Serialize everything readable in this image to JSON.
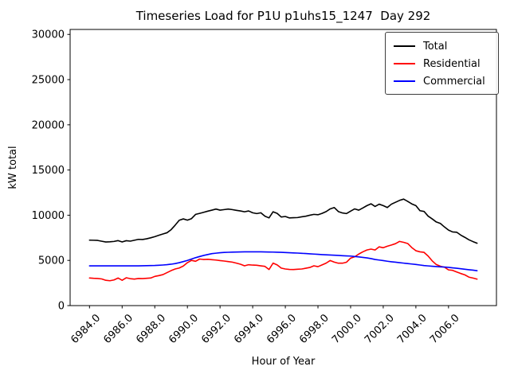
{
  "chart": {
    "title": "Timeseries Load for P1U p1uhs15_1247  Day 292",
    "xlabel": "Hour of Year",
    "ylabel": "kW total"
  },
  "chart_data": {
    "type": "line",
    "title": "Timeseries Load for P1U p1uhs15_1247  Day 292",
    "xlabel": "Hour of Year",
    "ylabel": "kW total",
    "grid": false,
    "legend_position": "upper right",
    "xlim": [
      6982.8125,
      7008.9375
    ],
    "ylim": [
      0,
      30550
    ],
    "xticks": [
      6984,
      6986,
      6988,
      6990,
      6992,
      6994,
      6996,
      6998,
      7000,
      7002,
      7004,
      7006
    ],
    "xtick_labels": [
      "6984.0",
      "6986.0",
      "6988.0",
      "6990.0",
      "6992.0",
      "6994.0",
      "6996.0",
      "6998.0",
      "7000.0",
      "7002.0",
      "7004.0",
      "7006.0"
    ],
    "yticks": [
      0,
      5000,
      10000,
      15000,
      20000,
      25000,
      30000
    ],
    "ytick_labels": [
      "0",
      "5000",
      "10000",
      "15000",
      "20000",
      "25000",
      "30000"
    ],
    "x": [
      6984.0,
      6984.25,
      6984.5,
      6984.75,
      6985.0,
      6985.25,
      6985.5,
      6985.75,
      6986.0,
      6986.25,
      6986.5,
      6986.75,
      6987.0,
      6987.25,
      6987.5,
      6987.75,
      6988.0,
      6988.25,
      6988.5,
      6988.75,
      6989.0,
      6989.25,
      6989.5,
      6989.75,
      6990.0,
      6990.25,
      6990.5,
      6990.75,
      6991.0,
      6991.25,
      6991.5,
      6991.75,
      6992.0,
      6992.25,
      6992.5,
      6992.75,
      6993.0,
      6993.25,
      6993.5,
      6993.75,
      6994.0,
      6994.25,
      6994.5,
      6994.75,
      6995.0,
      6995.25,
      6995.5,
      6995.75,
      6996.0,
      6996.25,
      6996.5,
      6996.75,
      6997.0,
      6997.25,
      6997.5,
      6997.75,
      6998.0,
      6998.25,
      6998.5,
      6998.75,
      6999.0,
      6999.25,
      6999.5,
      6999.75,
      7000.0,
      7000.25,
      7000.5,
      7000.75,
      7001.0,
      7001.25,
      7001.5,
      7001.75,
      7002.0,
      7002.25,
      7002.5,
      7002.75,
      7003.0,
      7003.25,
      7003.5,
      7003.75,
      7004.0,
      7004.25,
      7004.5,
      7004.75,
      7005.0,
      7005.25,
      7005.5,
      7005.75,
      7006.0,
      7006.25,
      7006.5,
      7006.75,
      7007.0,
      7007.25,
      7007.5,
      7007.75
    ],
    "series": [
      {
        "name": "Total",
        "color": "#000000",
        "values": [
          7240,
          7230,
          7210,
          7120,
          7040,
          7060,
          7100,
          7190,
          7040,
          7180,
          7130,
          7230,
          7330,
          7310,
          7390,
          7500,
          7630,
          7780,
          7920,
          8060,
          8400,
          8900,
          9440,
          9590,
          9450,
          9620,
          10090,
          10200,
          10320,
          10450,
          10560,
          10680,
          10560,
          10620,
          10680,
          10620,
          10540,
          10470,
          10380,
          10470,
          10270,
          10180,
          10270,
          9890,
          9700,
          10380,
          10200,
          9800,
          9860,
          9700,
          9720,
          9740,
          9820,
          9890,
          10000,
          10090,
          10050,
          10200,
          10400,
          10700,
          10850,
          10400,
          10250,
          10180,
          10450,
          10700,
          10560,
          10800,
          11060,
          11260,
          10970,
          11220,
          11060,
          10850,
          11220,
          11430,
          11640,
          11780,
          11530,
          11250,
          11060,
          10500,
          10420,
          9900,
          9590,
          9250,
          9090,
          8700,
          8350,
          8150,
          8120,
          7800,
          7550,
          7280,
          7080,
          6900
        ]
      },
      {
        "name": "Residential",
        "color": "#ff0000",
        "values": [
          3050,
          3020,
          3000,
          2950,
          2800,
          2750,
          2840,
          3050,
          2800,
          3080,
          2980,
          2930,
          3000,
          2990,
          3020,
          3050,
          3230,
          3320,
          3430,
          3650,
          3870,
          4050,
          4160,
          4380,
          4750,
          5000,
          4900,
          5150,
          5100,
          5120,
          5080,
          5040,
          4980,
          4930,
          4870,
          4810,
          4700,
          4580,
          4400,
          4520,
          4480,
          4460,
          4400,
          4340,
          3990,
          4700,
          4500,
          4150,
          4050,
          4000,
          3990,
          4020,
          4050,
          4130,
          4220,
          4400,
          4310,
          4500,
          4700,
          4990,
          4810,
          4690,
          4690,
          4800,
          5250,
          5400,
          5700,
          5950,
          6150,
          6250,
          6150,
          6500,
          6400,
          6570,
          6700,
          6850,
          7100,
          7000,
          6870,
          6420,
          6070,
          5950,
          5890,
          5480,
          4950,
          4540,
          4360,
          4250,
          3950,
          3900,
          3720,
          3550,
          3400,
          3150,
          3050,
          2930
        ]
      },
      {
        "name": "Commercial",
        "color": "#0000ff",
        "values": [
          4400,
          4400,
          4400,
          4400,
          4400,
          4400,
          4400,
          4400,
          4400,
          4400,
          4400,
          4400,
          4400,
          4410,
          4420,
          4430,
          4440,
          4460,
          4490,
          4530,
          4580,
          4650,
          4750,
          4870,
          5000,
          5150,
          5300,
          5430,
          5550,
          5650,
          5750,
          5800,
          5850,
          5880,
          5900,
          5915,
          5930,
          5940,
          5945,
          5950,
          5950,
          5950,
          5945,
          5940,
          5930,
          5920,
          5905,
          5890,
          5870,
          5850,
          5830,
          5810,
          5780,
          5760,
          5730,
          5700,
          5670,
          5640,
          5620,
          5600,
          5570,
          5550,
          5520,
          5500,
          5480,
          5430,
          5390,
          5330,
          5280,
          5200,
          5100,
          5040,
          4980,
          4910,
          4850,
          4800,
          4750,
          4700,
          4650,
          4600,
          4550,
          4490,
          4430,
          4390,
          4350,
          4320,
          4290,
          4260,
          4230,
          4180,
          4130,
          4080,
          4020,
          3970,
          3920,
          3860
        ]
      }
    ]
  }
}
